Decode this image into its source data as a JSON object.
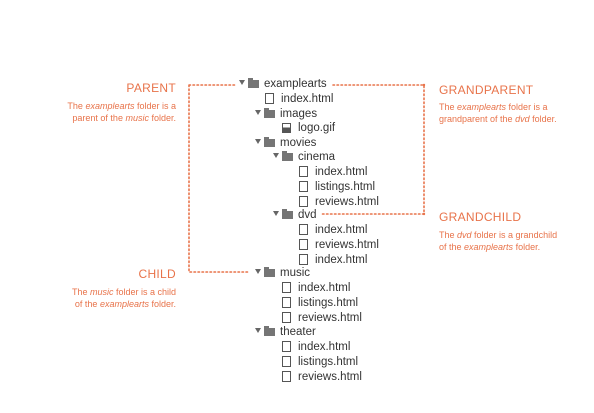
{
  "tree": [
    {
      "name": "examplearts",
      "type": "folder"
    },
    {
      "name": "index.html",
      "type": "file"
    },
    {
      "name": "images",
      "type": "folder"
    },
    {
      "name": "logo.gif",
      "type": "image"
    },
    {
      "name": "movies",
      "type": "folder"
    },
    {
      "name": "cinema",
      "type": "folder"
    },
    {
      "name": "index.html",
      "type": "file"
    },
    {
      "name": "listings.html",
      "type": "file"
    },
    {
      "name": "reviews.html",
      "type": "file"
    },
    {
      "name": "dvd",
      "type": "folder"
    },
    {
      "name": "index.html",
      "type": "file"
    },
    {
      "name": "reviews.html",
      "type": "file"
    },
    {
      "name": "index.html",
      "type": "file"
    },
    {
      "name": "music",
      "type": "folder"
    },
    {
      "name": "index.html",
      "type": "file"
    },
    {
      "name": "listings.html",
      "type": "file"
    },
    {
      "name": "reviews.html",
      "type": "file"
    },
    {
      "name": "theater",
      "type": "folder"
    },
    {
      "name": "index.html",
      "type": "file"
    },
    {
      "name": "listings.html",
      "type": "file"
    },
    {
      "name": "reviews.html",
      "type": "file"
    }
  ],
  "labels": {
    "parent": {
      "title": "PARENT",
      "desc": [
        "The ",
        "examplearts",
        " folder is a",
        "parent of the ",
        "music",
        " folder."
      ]
    },
    "grandparent": {
      "title": "GRANDPARENT",
      "desc": [
        "The ",
        "examplearts",
        " folder is a",
        "grandparent of the ",
        "dvd",
        " folder."
      ]
    },
    "grandchild": {
      "title": "GRANDCHILD",
      "desc": [
        "The ",
        "dvd",
        " folder is a grandchild",
        "of the ",
        "examplearts",
        " folder."
      ]
    },
    "child": {
      "title": "CHILD",
      "desc": [
        "The ",
        "music",
        " folder is a child",
        "of the ",
        "examplearts",
        " folder."
      ]
    }
  },
  "colors": {
    "accent": "#e8734a",
    "text": "#333333",
    "icon": "#757575"
  },
  "icons": {
    "folder": "folder-icon",
    "file": "file-icon",
    "image": "image-file-icon",
    "expand": "expand-arrow-icon"
  }
}
